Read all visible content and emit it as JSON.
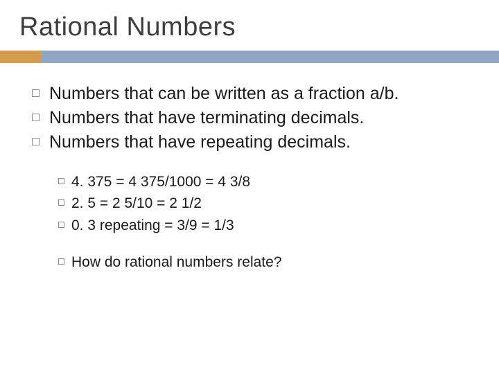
{
  "title": "Rational Numbers",
  "accent_color": "#d59b4f",
  "bar_color": "#8fa5c2",
  "background_color": "#ffffff",
  "text_color": "#1a1a1a",
  "title_color": "#3e3e3e",
  "title_fontsize": 38,
  "body_fontsize": 25,
  "sub_fontsize": 21,
  "main_bullets": [
    "Numbers that can be written as a fraction a/b.",
    "Numbers that have terminating decimals.",
    "Numbers that have repeating decimals."
  ],
  "example_bullets": [
    "4. 375   =  4 375/1000   =   4 3/8",
    "2. 5   =  2 5/10   =   2 1/2",
    "0. 3  repeating   =   3/9   =   1/3"
  ],
  "question_bullets": [
    "How  do rational numbers relate?"
  ]
}
